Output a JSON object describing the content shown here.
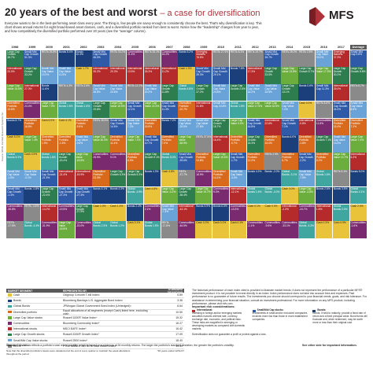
{
  "header": {
    "title": "20 years of the best and worst",
    "subtitle": "– a case for diversification",
    "intro": "Everyone wants to be in the best-performing asset class every year. The thing is, few people are savvy enough to consistently choose the best. That's why diversification is key. This chart shows annual returns for eight broad-based asset classes, cash, and a diversified portfolio ranked from best to worst. Notice how the \"leadership\" changes from year to year, and how competitively the diversified portfolio performed over 20 years (see the \"average\" column).",
    "logo_text": "MFS",
    "logo_color": "#b0333b"
  },
  "side_note": "Source: SPAR, FactSet Research Systems Inc.",
  "years": [
    "1998",
    "1999",
    "2000",
    "2001",
    "2002",
    "2003",
    "2004",
    "2005",
    "2006",
    "2007",
    "2008",
    "2009",
    "2010",
    "2011",
    "2012",
    "2013",
    "2014",
    "2015",
    "2016",
    "2017",
    "Average"
  ],
  "assets": {
    "LG": {
      "color": "#2e7d4f",
      "text": "dark"
    },
    "SG": {
      "color": "#2e5aa8",
      "text": "dark"
    },
    "INT": {
      "color": "#b52a2a",
      "text": "dark"
    },
    "BND": {
      "color": "#1b3f7a",
      "text": "dark"
    },
    "DIV": {
      "color": "#d96a1c",
      "text": "dark"
    },
    "LV": {
      "color": "#6cae3e",
      "text": "dark"
    },
    "SV": {
      "color": "#6aa3d8",
      "text": "dark"
    },
    "COM": {
      "color": "#7a2a6f",
      "text": "dark"
    },
    "GLB": {
      "color": "#3fa6a0",
      "text": "dark"
    },
    "CASH": {
      "color": "#e9c33a",
      "text": "light"
    },
    "REIT": {
      "color": "#8a8a8a",
      "text": "dark"
    }
  },
  "grid": [
    [
      [
        "LG",
        "Large Cap Growth 38.7%"
      ],
      [
        "SG",
        "Small/ Mid Cap Growth 51.3%"
      ],
      [
        "REIT",
        "REITs 26.8%"
      ],
      [
        "BND",
        "Bonds 8.4%"
      ],
      [
        "BND",
        "Bonds 10.3%"
      ],
      [
        "SG",
        "Small/ Mid Cap Growth 46.0%"
      ],
      [
        "REIT",
        "REITs 33.2%"
      ],
      [
        "COM",
        "Commodities 21.4%"
      ],
      [
        "REIT",
        "REITs 35.1%"
      ],
      [
        "COM",
        "Commodities 16.2%"
      ],
      [
        "BND",
        "Bonds 5.2%"
      ],
      [
        "INT",
        "Emerging Markets 78.5%"
      ],
      [
        "REIT",
        "REITs 27.9%"
      ],
      [
        "REIT",
        "REITs 8.3%"
      ],
      [
        "REIT",
        "REITs 19.7%"
      ],
      [
        "SG",
        "Small/ Mid Cap Growth 35.7%"
      ],
      [
        "REIT",
        "REITs 28.0%"
      ],
      [
        "REIT",
        "REITs 2.8%"
      ],
      [
        "SV",
        "Small/ Mid Cap Value 20.0%"
      ],
      [
        "INT",
        "Emerging Markets 37.3%"
      ],
      [
        "SG",
        "Small/ Mid Cap 9.8%"
      ]
    ],
    [
      [
        "INT",
        "International 20.0%"
      ],
      [
        "LG",
        "Large Cap Growth 33.2%"
      ],
      [
        "SV",
        "Small/ Mid Cap Value 19.2%"
      ],
      [
        "SV",
        "Small/ Mid Cap Value 10.5%"
      ],
      [
        "CASH",
        "Cash 1.7%"
      ],
      [
        "INT",
        "International 39.2%"
      ],
      [
        "INT",
        "International 20.3%"
      ],
      [
        "INT",
        "International 13.5%"
      ],
      [
        "INT",
        "International 26.3%"
      ],
      [
        "INT",
        "International 11.2%"
      ],
      [
        "CASH",
        "Cash 1.3%"
      ],
      [
        "SG",
        "Small/ Mid Cap Growth 39.3%"
      ],
      [
        "SG",
        "Small/ Mid Cap Growth 29.1%"
      ],
      [
        "BND",
        "Bonds 7.8%"
      ],
      [
        "INT",
        "International 17.3%"
      ],
      [
        "LG",
        "Large Cap Growth 33.5%"
      ],
      [
        "LV",
        "Large Cap Value 13.5%"
      ],
      [
        "LG",
        "Large Cap Growth 5.7%"
      ],
      [
        "LV",
        "Large Cap Value 17.3%"
      ],
      [
        "LG",
        "Large Cap Growth 30.2%"
      ],
      [
        "LG",
        "Large Cap Growth 8.8%"
      ]
    ],
    [
      [
        "LV",
        "Large Cap Value 15.6%"
      ],
      [
        "INT",
        "International 27.3%"
      ],
      [
        "BND",
        "Bonds 11.6%"
      ],
      [
        "REIT",
        "REITs 4.3%"
      ],
      [
        "REIT",
        "REITs 3.6%"
      ],
      [
        "SV",
        "Small/ Mid Cap Value 36.8%"
      ],
      [
        "SV",
        "Small/ Mid Cap Value 20.6%"
      ],
      [
        "REIT",
        "REITs 12.2%"
      ],
      [
        "SV",
        "Small/ Mid Cap Value 20.2%"
      ],
      [
        "LG",
        "Large Cap Growth 11.8%"
      ],
      [
        "GLB",
        "Global Bonds 4.8%"
      ],
      [
        "LG",
        "Large Cap Growth 37.2%"
      ],
      [
        "SV",
        "Small/ Mid Cap Value 24.8%"
      ],
      [
        "LG",
        "Large Cap Growth 2.6%"
      ],
      [
        "SV",
        "Small/ Mid Cap Value 18.2%"
      ],
      [
        "SV",
        "Small/ Mid Cap Value 33.5%"
      ],
      [
        "LG",
        "Large Cap Growth 13.1%"
      ],
      [
        "BND",
        "Bonds 0.6%"
      ],
      [
        "SG",
        "Small/ Mid Cap 11.3%"
      ],
      [
        "INT",
        "International 25.0%"
      ],
      [
        "REIT",
        "REITs 8.7%"
      ]
    ],
    [
      [
        "DIV",
        "Diversified Portfolio 13.6%"
      ],
      [
        "COM",
        "Commodities 24.4%"
      ],
      [
        "LV",
        "Large Cap Value 7.0%"
      ],
      [
        "GLB",
        "Global Bonds 1.6%"
      ],
      [
        "GLB",
        "Global Bonds 1.6%"
      ],
      [
        "LG",
        "Large Cap Growth 29.8%"
      ],
      [
        "LV",
        "Large Cap Value 16.5%"
      ],
      [
        "SG",
        "Small/ Mid Cap Growth 12.1%"
      ],
      [
        "LV",
        "Large Cap Value 22.3%"
      ],
      [
        "SG",
        "Small/ Mid Cap Growth 11.4%"
      ],
      [
        "DIV",
        "Diversified Portfolio -22.7%"
      ],
      [
        "INT",
        "International 31.8%"
      ],
      [
        "SV",
        "Small/ Mid Cap 24.8%"
      ],
      [
        "GLB",
        "Global Bonds 1.5%"
      ],
      [
        "LV",
        "Large Cap Value 17.5%"
      ],
      [
        "LV",
        "Large Cap Value 32.5%"
      ],
      [
        "SV",
        "Small/ Mid Cap Value 7.1%"
      ],
      [
        "CASH",
        "Cash 0.0%"
      ],
      [
        "REIT",
        "REITs 8.6%"
      ],
      [
        "SG",
        "Small/ Mid Cap Growth 24.0%"
      ],
      [
        "SV",
        "Small/ Mid Cap Value 8.6%"
      ]
    ],
    [
      [
        "BND",
        "Bonds 8.7%"
      ],
      [
        "DIV",
        "Diversified Portfolio 16.8%"
      ],
      [
        "CASH",
        "Cash 6.0%"
      ],
      [
        "CASH",
        "Cash 4.1%"
      ],
      [
        "DIV",
        "Diversified Portfolio -9.5%"
      ],
      [
        "REIT",
        "REITs 28.5%"
      ],
      [
        "SG",
        "Small/ Mid Cap Growth 14.6%"
      ],
      [
        "SV",
        "Small/ Mid Cap Value 7.2%"
      ],
      [
        "DIV",
        "Diversified Portfolio 15.8%"
      ],
      [
        "BND",
        "Bonds 7.0%"
      ],
      [
        "SV",
        "Small/ Mid Cap Value -29.9%"
      ],
      [
        "SV",
        "Small/ Mid Cap Value 27.6%"
      ],
      [
        "LG",
        "Large Cap Growth 16.7%"
      ],
      [
        "LV",
        "Large Cap Value 0.4%"
      ],
      [
        "SG",
        "Small/ Mid Cap Growth 16.8%"
      ],
      [
        "INT",
        "International 22.8%"
      ],
      [
        "SG",
        "Small/ Mid Cap Growth 7.1%"
      ],
      [
        "INT",
        "International -0.8%"
      ],
      [
        "COM",
        "Commodities 11.8%"
      ],
      [
        "DIV",
        "Diversified Portfolio 15.4%"
      ],
      [
        "DIV",
        "Diversified Portfolio 7.2%"
      ]
    ],
    [
      [
        "CASH",
        "Cash 5.1%"
      ],
      [
        "LV",
        "Large Cap Value 7.4%"
      ],
      [
        "DIV",
        "Diversified Portfolio 1.9%"
      ],
      [
        "DIV",
        "Diversified Portfolio -1.5%"
      ],
      [
        "SV",
        "Small/ Mid Cap Value -9.6%"
      ],
      [
        "LV",
        "Large Cap Value 30.0%"
      ],
      [
        "DIV",
        "Diversified Portfolio 11.4%"
      ],
      [
        "LV",
        "Large Cap Value 7.1%"
      ],
      [
        "SG",
        "Small/ Mid Cap Growth 10.7%"
      ],
      [
        "DIV",
        "Diversified Portfolio 7.0%"
      ],
      [
        "LV",
        "Large Cap Value -36.9%"
      ],
      [
        "REIT",
        "REITs 27.5%"
      ],
      [
        "INT",
        "International 16.4%"
      ],
      [
        "DIV",
        "Diversified Portfolio -0.7%"
      ],
      [
        "LG",
        "Large Cap Growth 15.3%"
      ],
      [
        "DIV",
        "Diversified Portfolio 16.0%"
      ],
      [
        "BND",
        "Bonds 6.0%"
      ],
      [
        "DIV",
        "Diversified Portfolio -1.8%"
      ],
      [
        "LG",
        "Large Cap Growth 7.1%"
      ],
      [
        "SV",
        "Small/ Mid Cap Value 13.3%"
      ],
      [
        "LV",
        "Large Cap Value 7.4%"
      ]
    ],
    [
      [
        "GLB",
        "Global Bonds 5.3%"
      ],
      [
        "CASH",
        "Cash 4.9%"
      ],
      [
        "GLB",
        "Global Bonds 1.6%"
      ],
      [
        "LG",
        "Large Cap Growth -20.4%"
      ],
      [
        "LV",
        "Large Cap Value -15.5%"
      ],
      [
        "COM",
        "Commodities 25.9%"
      ],
      [
        "COM",
        "Commodities 9.1%"
      ],
      [
        "DIV",
        "Diversified Portfolio 6.9%"
      ],
      [
        "LG",
        "Large Cap Growth 9.1%"
      ],
      [
        "GLB",
        "Global Bonds 5.0%"
      ],
      [
        "SG",
        "Small/ Mid Cap Growth -39.6%"
      ],
      [
        "DIV",
        "Diversified Portfolio 24.8%"
      ],
      [
        "LV",
        "Large Cap Value 15.5%"
      ],
      [
        "SG",
        "Small/ Mid Cap Growth -1.7%"
      ],
      [
        "DIV",
        "Diversified Portfolio 12.2%"
      ],
      [
        "REIT",
        "REITs 2.9%"
      ],
      [
        "DIV",
        "Diversified Portfolio 5.7%"
      ],
      [
        "SG",
        "Small/ Mid Cap Growth -2.2%"
      ],
      [
        "DIV",
        "Diversified Portfolio 6.2%"
      ],
      [
        "LV",
        "Large Cap Value 13.7%"
      ],
      [
        "INT",
        "International 6.2%"
      ]
    ],
    [
      [
        "SV",
        "Small/ Mid Cap Value -1.5%"
      ],
      [
        "SV",
        "Small/ Mid Cap Value -0.1%"
      ],
      [
        "SG",
        "Small/ Mid Cap Growth -21.5%"
      ],
      [
        "INT",
        "International -21.4%"
      ],
      [
        "INT",
        "International -15.9%"
      ],
      [
        "DIV",
        "Diversified Portfolio 23.3%"
      ],
      [
        "LG",
        "Large Cap Growth 6.3%"
      ],
      [
        "LG",
        "Large Cap Growth 5.3%"
      ],
      [
        "BND",
        "Bonds 4.3%"
      ],
      [
        "CASH",
        "Cash 4.8%"
      ],
      [
        "REIT",
        "REITs -37.7%"
      ],
      [
        "COM",
        "Commodities 18.9%"
      ],
      [
        "DIV",
        "Diversified Portfolio 14.1%"
      ],
      [
        "SV",
        "Small/ Mid Cap Value -3.4%"
      ],
      [
        "BND",
        "Bonds 4.2%"
      ],
      [
        "BND",
        "Bonds -2.0%"
      ],
      [
        "GLB",
        "Global Bonds -3.1%"
      ],
      [
        "SV",
        "Small/ Mid Cap Value -7.5%"
      ],
      [
        "GLB",
        "Global Bonds 1.6%"
      ],
      [
        "REIT",
        "REITs 5.1%"
      ],
      [
        "BND",
        "Bonds 5.0%"
      ]
    ],
    [
      [
        "SG",
        "Small/ Mid Cap Growth -1.4%"
      ],
      [
        "BND",
        "Bonds -0.8%"
      ],
      [
        "LG",
        "Large Cap Growth -22.4%"
      ],
      [
        "SG",
        "Small/ Mid Cap Growth -27.3%"
      ],
      [
        "SG",
        "Small/ Mid Cap Growth -27.4%"
      ],
      [
        "BND",
        "Bonds 4.1%"
      ],
      [
        "BND",
        "Bonds 4.3%"
      ],
      [
        "GLB",
        "Global Bonds -4.5%"
      ],
      [
        "CASH",
        "Cash 4.8%"
      ],
      [
        "LV",
        "Large Cap Value -0.2%"
      ],
      [
        "LG",
        "Large Cap Growth -38.4%"
      ],
      [
        "LV",
        "Large Cap Value 19.7%"
      ],
      [
        "COM",
        "Commodities 9.0%"
      ],
      [
        "INT",
        "International -12.1%"
      ],
      [
        "GLB",
        "Global Bonds 1.6%"
      ],
      [
        "GLB",
        "Global Bonds -4.0%"
      ],
      [
        "CASH",
        "Cash 0.0%"
      ],
      [
        "LV",
        "Large Cap Value -3.8%"
      ],
      [
        "BND",
        "Bonds 2.6%"
      ],
      [
        "BND",
        "Bonds 3.5%"
      ],
      [
        "GLB",
        "Global Bonds 4.1%"
      ]
    ],
    [
      [
        "COM",
        "Commodities -35.8%"
      ],
      [
        "REIT",
        "REITs -4.6%"
      ],
      [
        "INT",
        "International -14.2%"
      ],
      [
        "COM",
        "Commodities -19.5%"
      ],
      [
        "LG",
        "Large Cap Growth -27.9%"
      ],
      [
        "CASH",
        "Cash 1.0%"
      ],
      [
        "CASH",
        "Cash 1.3%"
      ],
      [
        "BND",
        "Bonds 2.4%"
      ],
      [
        "COM",
        "Commodities 2.1%"
      ],
      [
        "SV",
        "Small/ Mid Cap Value -7.4%"
      ],
      [
        "INT",
        "International -43.1%"
      ],
      [
        "BND",
        "Bonds 5.9%"
      ],
      [
        "BND",
        "Bonds 6.5%"
      ],
      [
        "COM",
        "Commodities -13.3%"
      ],
      [
        "CASH",
        "Cash 0.1%"
      ],
      [
        "CASH",
        "Cash 0.0%"
      ],
      [
        "INT",
        "International -2.2%"
      ],
      [
        "COM",
        "Commodities -24.7%"
      ],
      [
        "INT",
        "International 1.5%"
      ],
      [
        "GLB",
        "Global Bonds 2.0%"
      ],
      [
        "CASH",
        "Cash 2.0%"
      ]
    ],
    [
      [
        "REIT",
        "REITs -17.5%"
      ],
      [
        "GLB",
        "Global Bonds -4.3%"
      ],
      [
        "COM",
        "Commodities -31.9%"
      ],
      [
        "LV",
        "Large Cap Value -15.5%"
      ],
      [
        "COM",
        "Commodities -23.0%"
      ],
      [
        "GLB",
        "Global Bonds 2.3%"
      ],
      [
        "GLB",
        "Global Bonds 1.2%"
      ],
      [
        "CASH",
        "Cash 3.1%"
      ],
      [
        "GLB",
        "Global Bonds 1.5%"
      ],
      [
        "REIT",
        "REITs -17.8%"
      ],
      [
        "COM",
        "Commodities -46.5%"
      ],
      [
        "CASH",
        "Cash 0.2%"
      ],
      [
        "CASH",
        "Cash 0.1%"
      ],
      [
        "CASH",
        "Cash 0.1%"
      ],
      [
        "COM",
        "Commodities -1.1%"
      ],
      [
        "COM",
        "Commodities -9.5%"
      ],
      [
        "COM",
        "Commodities -33.1%"
      ],
      [
        "GLB",
        "Global Bonds -4.3%"
      ],
      [
        "CASH",
        "Cash 0.3%"
      ],
      [
        "CASH",
        "Cash 0.9%"
      ],
      [
        "COM",
        "Commodities -1.6%"
      ]
    ]
  ],
  "legend": {
    "headers": [
      "MARKET SEGMENT",
      "REPRESENTED BY",
      "STANDARD DEVIATION*"
    ],
    "rows": [
      {
        "key": "CASH",
        "segment": "Cash",
        "index": "Citigroup 3-month T-bill Index¹",
        "sd": "0.59"
      },
      {
        "key": "BND",
        "segment": "Bonds",
        "index": "Bloomberg Barclays U.S. Aggregate Bond Index²",
        "sd": "3.36"
      },
      {
        "key": "GLB",
        "segment": "Global Bonds",
        "index": "JPMorgan Global Government Bond Index (Unhedged)³",
        "sd": "6.64"
      },
      {
        "key": "DIV",
        "segment": "Diversified portfolio",
        "index": "Equal allocations of all segments (except Cash) listed here, excluding cash",
        "sd": "10.50"
      },
      {
        "key": "LV",
        "segment": "Large Cap Value stocks",
        "index": "Russell 1000® Value Index⁴",
        "sd": "15.32"
      },
      {
        "key": "COM",
        "segment": "Commodities",
        "index": "Bloomberg Commodity Index⁵",
        "sd": "16.27"
      },
      {
        "key": "INT",
        "segment": "International stocks",
        "index": "MSCI EAFE Index⁶",
        "sd": "16.42"
      },
      {
        "key": "LG",
        "segment": "Large Cap Growth stocks",
        "index": "Russell 1000® Growth Index⁷",
        "sd": "17.09"
      },
      {
        "key": "SV",
        "segment": "Small/Mid Cap Value stocks",
        "index": "Russell 2500 Index⁸",
        "sd": "18.40"
      },
      {
        "key": "REIT",
        "segment": "REITs",
        "index": "FTSE NAREIT All REITs Total Return Index⁹",
        "sd": "19.39"
      }
    ],
    "footnote": "Note that the diversified portfolio's assets were rebalanced at the end of every quarter to maintain the equal allocations throughout the period.",
    "footnote2": "*20 years ended 12/31/17"
  },
  "std_text_bold": "Standard deviation",
  "std_text": "reflects a portfolio's total return volatility, which is based on a minimum of 36 monthly returns. The larger the portfolio's standard deviation, the greater the portfolio's volatility.",
  "right": {
    "para": "The historical performance of each index cited is provided to illustrate market trends; it does not represent the performance of a particular MFS® investment product. It is not possible to invest directly in an index. Index performance does not take into account fees and expenses. Past performance is no guarantee of future results. The investments you choose should correspond to your financial needs, goals, and risk tolerance. For assistance in determining your financial situation, consult an investment professional. For more information on any MFS product, including performance, please visit mfs.com.",
    "heading": "Important risk considerations:",
    "cols": [
      {
        "key": "INT",
        "title": "International:",
        "text": "Investing in foreign and/or emerging markets securities involves interest rate, currency exchange rate, economic, and political risks. These risks are magnified in emerging or developing markets as compared with domestic markets."
      },
      {
        "key": "SG",
        "title": "Small/Mid Cap stocks:",
        "text": "Investments in small and/or mid-sized companies involves more risk than those in more established companies."
      },
      {
        "key": "BND",
        "title": "Bonds:",
        "text": "Bonds, if held to maturity, provide a fixed rate of return and a fixed principal value. Bond funds will fluctuate and, when redeemed, may be worth more or less than their original cost."
      }
    ],
    "fine": "Diversification does not guarantee a profit or protect against a loss."
  },
  "see_other": "See other side for important information."
}
